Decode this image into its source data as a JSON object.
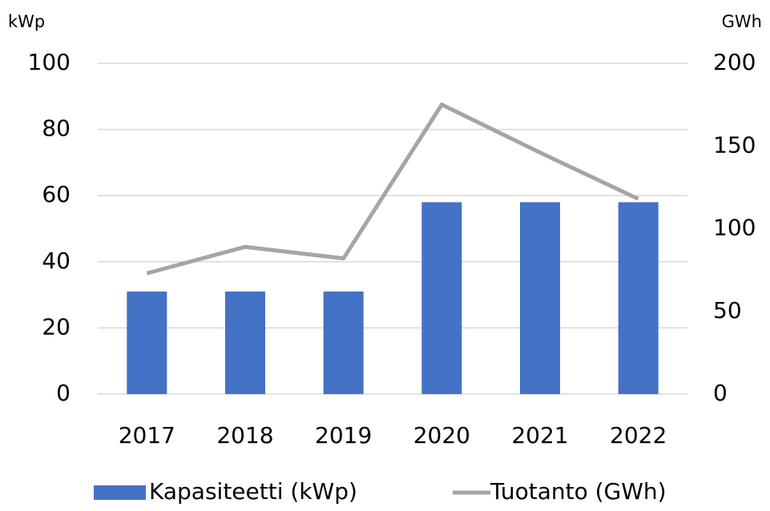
{
  "chart_data": {
    "type": "bar_line",
    "y_axis_label": "kWp",
    "y2_axis_label": "GWh",
    "categories": [
      "2017",
      "2018",
      "2019",
      "2020",
      "2021",
      "2022"
    ],
    "series": [
      {
        "name": "Kapasiteetti (kWp)",
        "type": "bar",
        "color": "#4472c4",
        "values": [
          31,
          31,
          31,
          58,
          58,
          58
        ]
      },
      {
        "name": "Tuotanto (GWh)",
        "type": "line",
        "axis": "y2",
        "color": "#a5a5a5",
        "values": [
          73,
          89,
          82,
          175,
          146,
          118
        ]
      }
    ],
    "ylim": [
      0,
      100
    ],
    "yticks": [
      0,
      20,
      40,
      60,
      80,
      100
    ],
    "y2lim": [
      0,
      200
    ],
    "y2ticks": [
      0,
      50,
      100,
      150,
      200
    ],
    "grid": true,
    "legend": "bottom"
  }
}
